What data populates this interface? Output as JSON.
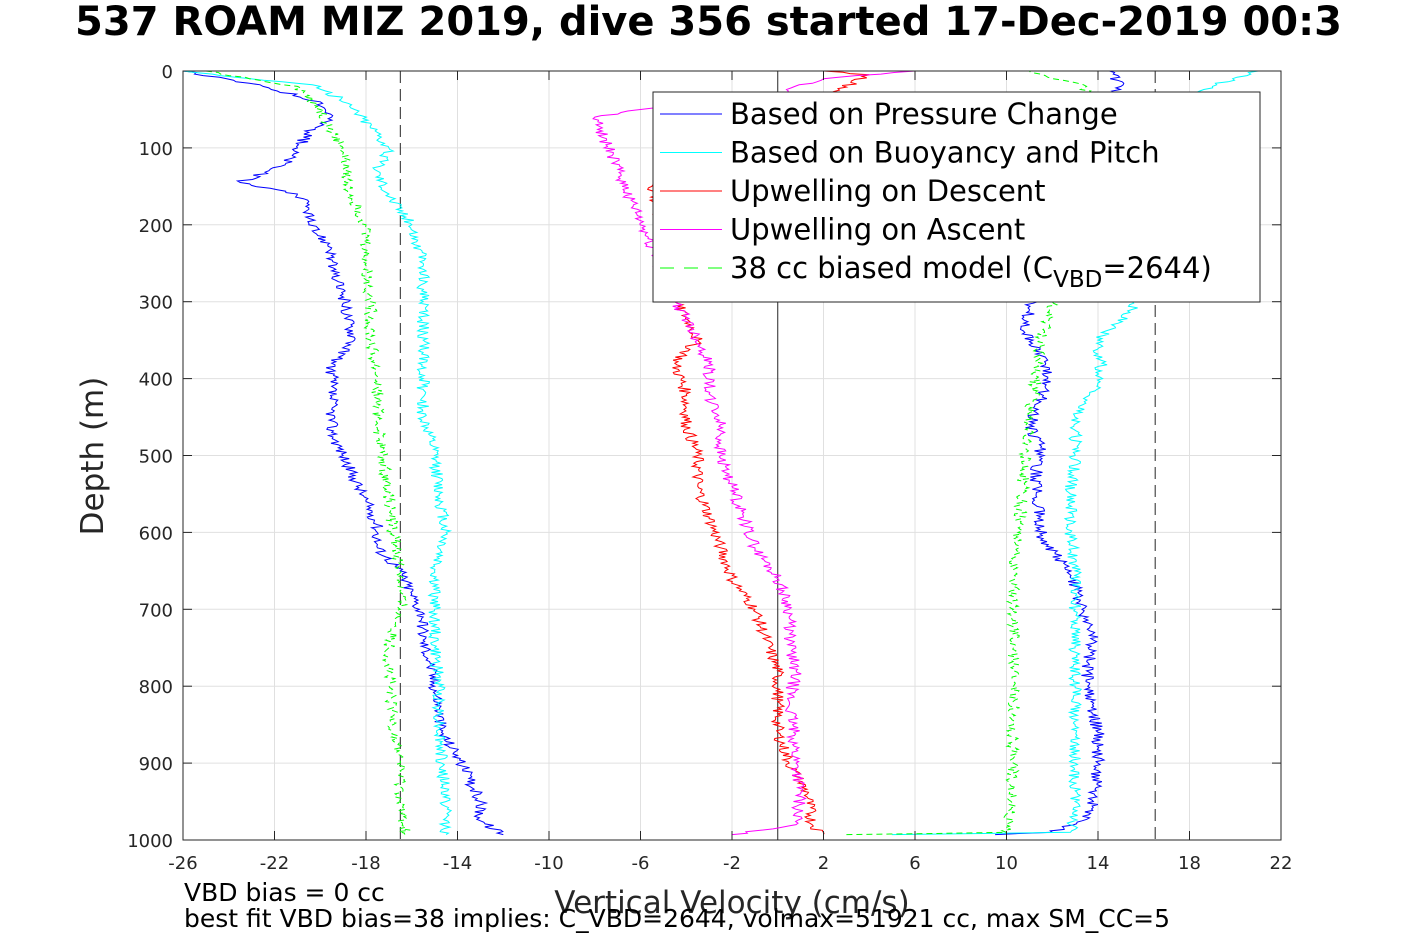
{
  "title": "537 ROAM MIZ 2019, dive 356 started 17-Dec-2019 00:3",
  "notes": {
    "line1": "VBD bias = 0 cc",
    "line2": "best fit VBD bias=38 implies: C_VBD=2644, volmax=51921 cc, max SM_CC=5"
  },
  "chart_data": {
    "type": "line",
    "xlabel": "Vertical Velocity (cm/s)",
    "ylabel": "Depth (m)",
    "xlim": [
      -26,
      22
    ],
    "ylim": [
      0,
      1000
    ],
    "y_reversed": true,
    "xticks": [
      "-26",
      "-22",
      "-18",
      "-14",
      "-10",
      "-6",
      "-2",
      "2",
      "6",
      "10",
      "14",
      "18",
      "22"
    ],
    "yticks": [
      "0",
      "100",
      "200",
      "300",
      "400",
      "500",
      "600",
      "700",
      "800",
      "900",
      "1000"
    ],
    "grid": true,
    "legend_position": "top-right",
    "reference_lines": [
      {
        "x": -16.5,
        "style": "dashed"
      },
      {
        "x": 0,
        "style": "solid"
      },
      {
        "x": 16.5,
        "style": "dashed"
      }
    ],
    "series": [
      {
        "name": "Based on Pressure Change",
        "color": "#0000ff",
        "style": "solid",
        "segments": [
          {
            "depth": [
              0,
              20,
              40,
              60,
              80,
              100,
              120,
              145,
              160,
              180,
              200,
              230,
              260,
              290,
              320,
              350,
              380,
              410,
              440,
              470,
              500,
              530,
              560,
              590,
              620,
              650,
              680,
              710,
              740,
              770,
              800,
              830,
              860,
              890,
              920,
              950,
              975,
              993
            ],
            "x": [
              -26,
              -22.5,
              -20,
              -19.5,
              -20.5,
              -21,
              -21.5,
              -23.5,
              -21,
              -20.5,
              -20.5,
              -19.5,
              -19.5,
              -19,
              -18.8,
              -18.5,
              -19.5,
              -19.5,
              -19.5,
              -19.5,
              -19,
              -18.5,
              -18,
              -17.5,
              -17.5,
              -16.5,
              -16,
              -15.5,
              -15.5,
              -15.2,
              -15,
              -14.8,
              -14.7,
              -14,
              -13.5,
              -13,
              -13,
              -12
            ]
          },
          {
            "depth": [
              993,
              990,
              975,
              950,
              900,
              860,
              820,
              780,
              740,
              700,
              670,
              640,
              610,
              580,
              550,
              520,
              490,
              460,
              430,
              400,
              370,
              340,
              310,
              80,
              20,
              0
            ],
            "x": [
              9.5,
              12,
              13.3,
              13.8,
              14,
              14,
              13.7,
              13.5,
              13.8,
              13.3,
              13,
              12.5,
              11.5,
              11.5,
              11.3,
              11.3,
              11.5,
              11,
              11.5,
              11.8,
              11.5,
              10.8,
              11,
              13.5,
              15,
              14.5
            ]
          }
        ]
      },
      {
        "name": "Based on Buoyancy and Pitch",
        "color": "#00ffff",
        "style": "solid",
        "segments": [
          {
            "depth": [
              0,
              20,
              50,
              80,
              100,
              130,
              160,
              200,
              250,
              300,
              350,
              400,
              450,
              500,
              550,
              600,
              650,
              700,
              750,
              800,
              850,
              900,
              950,
              993
            ],
            "x": [
              -26,
              -20,
              -18.5,
              -17.5,
              -17,
              -17.5,
              -17,
              -16,
              -15.5,
              -15.5,
              -15.5,
              -15.5,
              -15.5,
              -15,
              -14.8,
              -14.5,
              -15,
              -15,
              -15,
              -14.8,
              -14.8,
              -14.7,
              -14.5,
              -14.5
            ]
          },
          {
            "depth": [
              993,
              990,
              950,
              900,
              850,
              800,
              750,
              700,
              650,
              600,
              550,
              500,
              450,
              400,
              350,
              310,
              290,
              40,
              20,
              0
            ],
            "x": [
              5,
              12.8,
              13,
              13,
              13,
              13,
              13,
              13,
              13,
              12.8,
              12.8,
              13,
              13,
              14.2,
              14,
              15.5,
              16,
              17.5,
              19,
              21
            ]
          }
        ]
      },
      {
        "name": "Upwelling on Descent",
        "color": "#ff0000",
        "style": "solid",
        "segments": [
          {
            "depth": [
              0,
              5,
              150,
              300,
              320,
              350,
              380,
              420,
              460,
              500,
              540,
              580,
              620,
              660,
              700,
              740,
              780,
              820,
              860,
              900,
              940,
              980,
              993
            ],
            "x": [
              2,
              4,
              -5.5,
              -4.5,
              -4,
              -3.5,
              -4.5,
              -4,
              -4,
              -3.5,
              -3.5,
              -3,
              -2.5,
              -2,
              -1,
              -0.5,
              0,
              0,
              0,
              0.5,
              1.3,
              1.5,
              2
            ]
          }
        ]
      },
      {
        "name": "Upwelling on Ascent",
        "color": "#ff00ff",
        "style": "solid",
        "segments": [
          {
            "depth": [
              0,
              10,
              30,
              50,
              60,
              300,
              320,
              350,
              380,
              420,
              460,
              500,
              540,
              580,
              620,
              660,
              700,
              740,
              780,
              820,
              860,
              900,
              940,
              980,
              993
            ],
            "x": [
              6,
              2,
              0,
              -6,
              -8,
              -4.5,
              -4,
              -3.5,
              -3,
              -3,
              -2.5,
              -2.5,
              -2,
              -1.5,
              -1,
              0,
              0.5,
              0.5,
              0.8,
              0.5,
              0.7,
              0.8,
              1,
              0.8,
              -2
            ]
          }
        ]
      },
      {
        "name": "38 cc biased model",
        "legend_label": "38 cc biased model (C",
        "legend_subscript": "VBD",
        "legend_suffix": "=2644)",
        "color": "#00ff00",
        "style": "dashed",
        "segments": [
          {
            "depth": [
              0,
              20,
              50,
              80,
              100,
              150,
              200,
              250,
              300,
              350,
              400,
              450,
              500,
              550,
              600,
              650,
              700,
              750,
              800,
              850,
              900,
              950,
              993
            ],
            "x": [
              -25,
              -21,
              -20,
              -19.5,
              -19,
              -18.8,
              -18,
              -18,
              -17.8,
              -17.8,
              -17.5,
              -17.5,
              -17.3,
              -17,
              -16.8,
              -16.5,
              -16.5,
              -17,
              -17,
              -16.8,
              -16.5,
              -16.5,
              -16.3
            ]
          },
          {
            "depth": [
              993,
              990,
              950,
              900,
              850,
              800,
              750,
              700,
              650,
              600,
              550,
              500,
              450,
              400,
              350,
              300,
              20,
              0
            ],
            "x": [
              3,
              10,
              10.2,
              10.3,
              10.3,
              10.3,
              10.3,
              10.3,
              10.3,
              10.5,
              10.7,
              10.8,
              11,
              11.3,
              11.5,
              12,
              13.5,
              11
            ]
          }
        ]
      }
    ]
  }
}
